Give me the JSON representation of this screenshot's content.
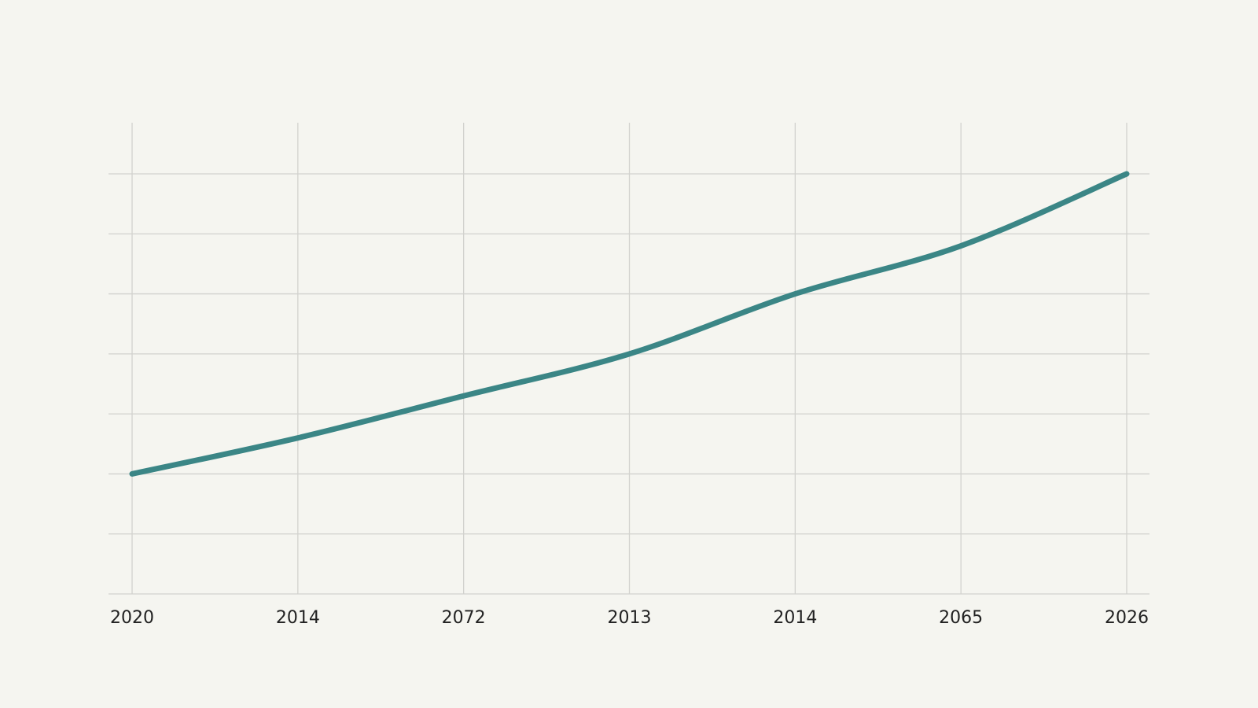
{
  "chart_data": {
    "type": "line",
    "categories": [
      "2020",
      "2014",
      "2072",
      "2013",
      "2014",
      "2065",
      "2026"
    ],
    "series": [
      {
        "color": "#3b8686",
        "values": [
          2,
          2.6,
          3.3,
          4,
          5,
          5.8,
          7
        ]
      }
    ],
    "ylim": [
      0,
      7
    ],
    "yticks": [
      0,
      1,
      2,
      3,
      4,
      5,
      6,
      7
    ],
    "y_tick_labels": false,
    "grid": true
  }
}
